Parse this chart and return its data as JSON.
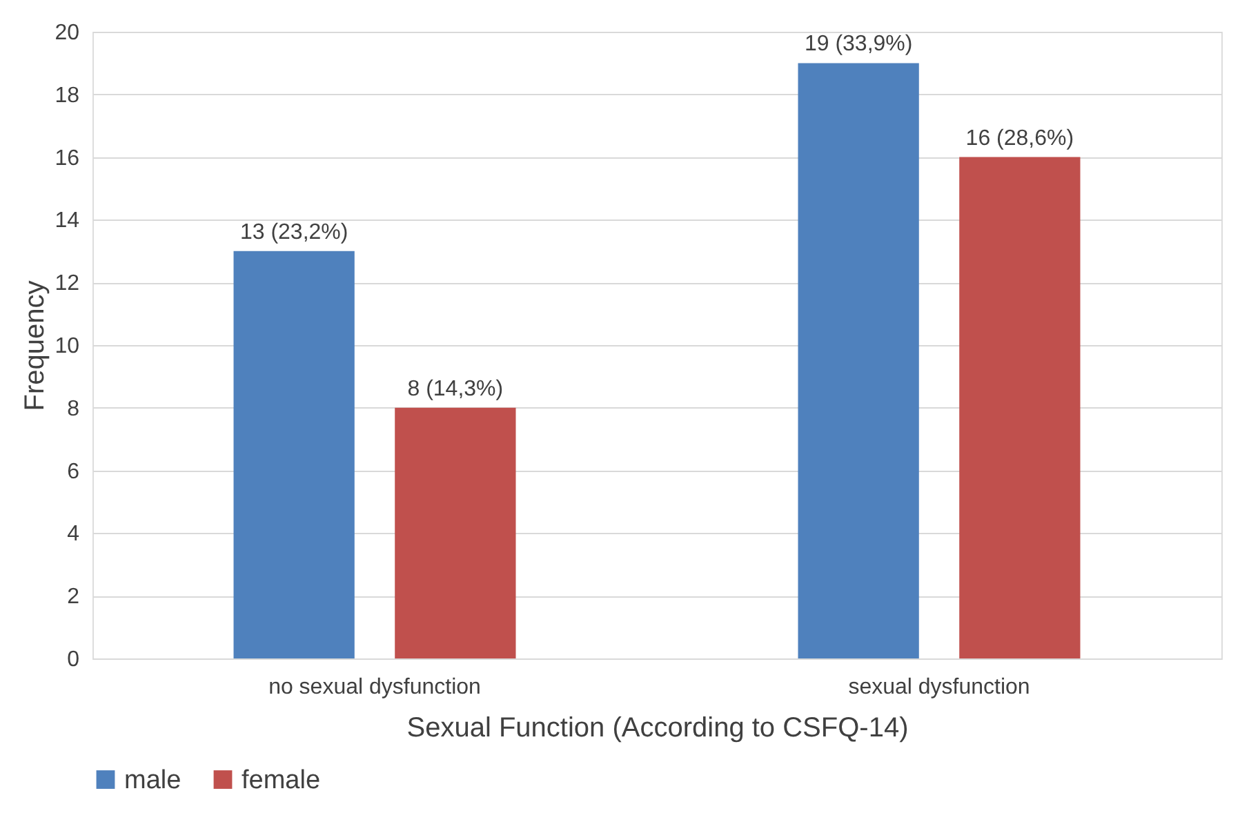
{
  "chart_data": {
    "type": "bar",
    "xlabel": "Sexual Function (According to CSFQ-14)",
    "ylabel": "Frequency",
    "categories": [
      "no sexual dysfunction",
      "sexual dysfunction"
    ],
    "series": [
      {
        "name": "male",
        "color": "#4f81bd",
        "values": [
          13,
          19
        ],
        "value_labels": [
          "13 (23,2%)",
          "19 (33,9%)"
        ]
      },
      {
        "name": "female",
        "color": "#c0504d",
        "values": [
          8,
          16
        ],
        "value_labels": [
          "8 (14,3%)",
          "16 (28,6%)"
        ]
      }
    ],
    "ylim": [
      0,
      20
    ],
    "yticks": [
      0,
      2,
      4,
      6,
      8,
      10,
      12,
      14,
      16,
      18,
      20
    ],
    "grid": "y",
    "legend": "bottom"
  }
}
